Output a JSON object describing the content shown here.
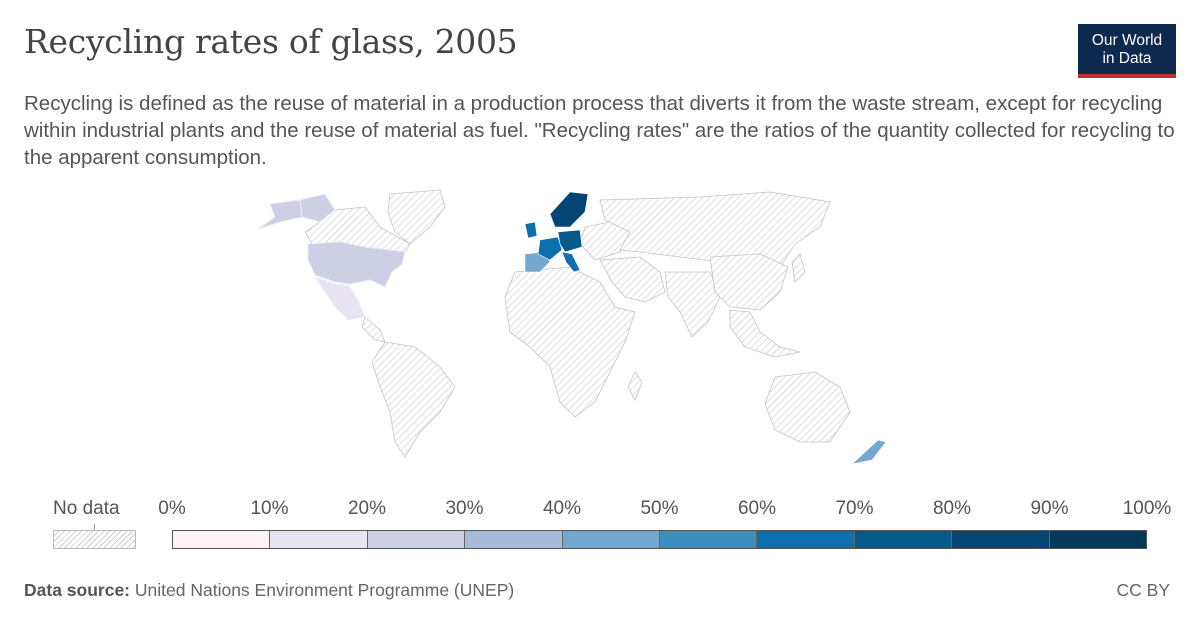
{
  "header": {
    "title": "Recycling rates of glass, 2005",
    "subtitle": "Recycling is defined as the reuse of material in a production process that diverts it from the waste stream, except for recycling within industrial plants and the reuse of material as fuel. \"Recycling rates\" are the ratios of the quantity collected for recycling to the apparent consumption.",
    "logo_line1": "Our World",
    "logo_line2": "in Data"
  },
  "legend": {
    "no_data_label": "No data",
    "ticks": [
      "0%",
      "10%",
      "20%",
      "30%",
      "40%",
      "50%",
      "60%",
      "70%",
      "80%",
      "90%",
      "100%"
    ],
    "bin_colors": [
      "#fcf3f6",
      "#e8e4f1",
      "#cdcfe4",
      "#a7bcda",
      "#74a8cf",
      "#3a8fc0",
      "#0c6fad",
      "#045a8d",
      "#034675",
      "#023858"
    ]
  },
  "map_colors": {
    "no_data_stroke": "#cfcfcf",
    "land_outline": "#bdbdbd",
    "canada": "#cdcfe4",
    "usa": "#cdcfe4",
    "mexico": "#e8e4f1",
    "iberia": "#74a8cf",
    "france": "#0c6fad",
    "central_europe": "#045a8d",
    "italy": "#0c6fad",
    "uk": "#0c6fad",
    "scandinavia": "#034675",
    "new_zealand": "#74a8cf"
  },
  "footer": {
    "source_label": "Data source:",
    "source_text": "United Nations Environment Programme (UNEP)",
    "license": "CC BY"
  }
}
